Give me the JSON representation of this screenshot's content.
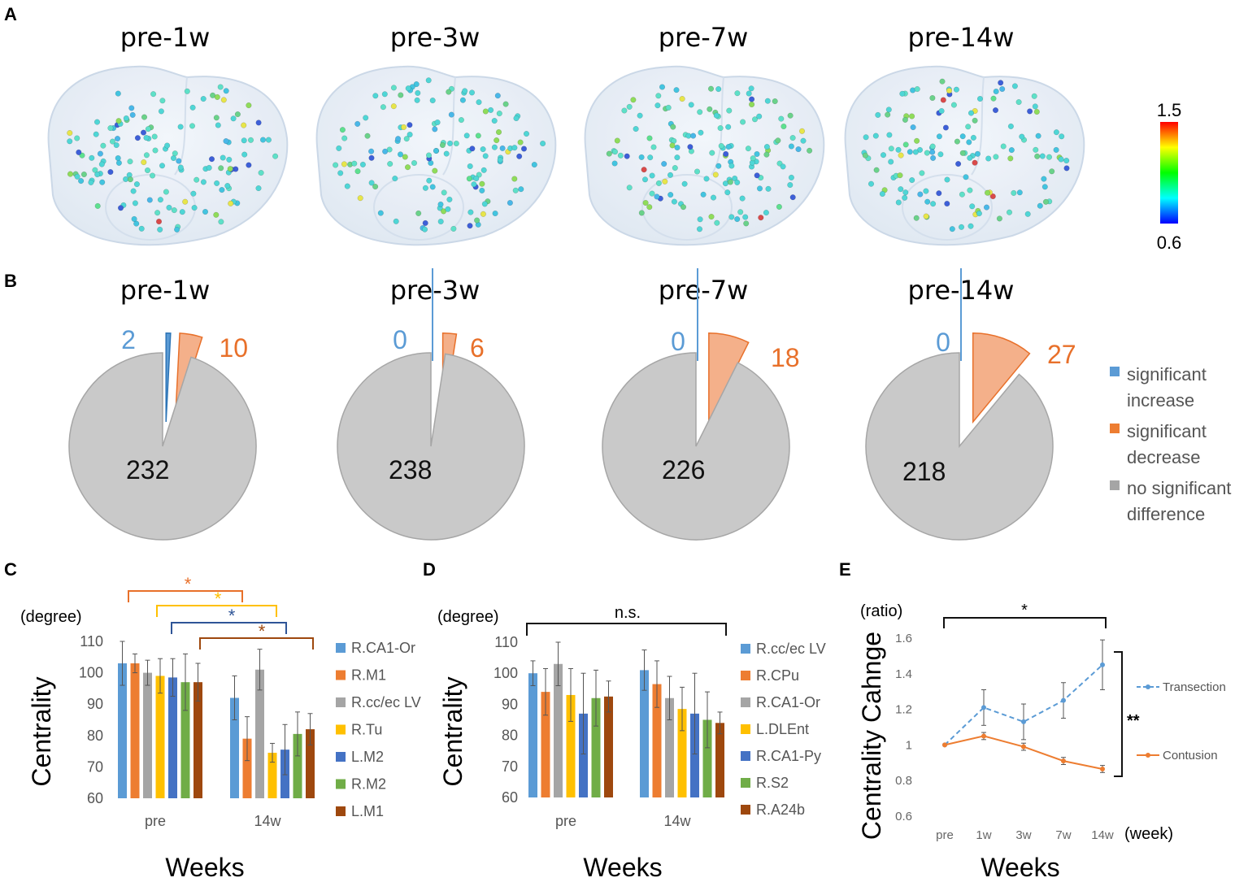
{
  "panels": {
    "A": {
      "label": "A",
      "titles": [
        "pre-1w",
        "pre-3w",
        "pre-7w",
        "pre-14w"
      ],
      "colorbar": {
        "max": "1.5",
        "min": "0.6"
      }
    },
    "B": {
      "label": "B"
    },
    "C": {
      "label": "C"
    },
    "D": {
      "label": "D"
    },
    "E": {
      "label": "E"
    }
  },
  "chart_data": [
    {
      "id": "B",
      "type": "pie",
      "charts": [
        {
          "title": "pre-1w",
          "values": [
            2,
            10,
            232
          ]
        },
        {
          "title": "pre-3w",
          "values": [
            0,
            6,
            238
          ]
        },
        {
          "title": "pre-7w",
          "values": [
            0,
            18,
            226
          ]
        },
        {
          "title": "pre-14w",
          "values": [
            0,
            27,
            218
          ]
        }
      ],
      "legend": [
        "significant increase",
        "significant decrease",
        "no significant difference"
      ],
      "colors": [
        "#5b9bd5",
        "#f4b08a",
        "#c9c9c9"
      ],
      "label_colors": [
        "#5b9bd5",
        "#e8702a",
        "#111111"
      ]
    },
    {
      "id": "C",
      "type": "bar",
      "unit": "(degree)",
      "ylabel": "Centrality",
      "xlabel": "Weeks",
      "ylim": [
        60,
        110
      ],
      "yticks": [
        60,
        70,
        80,
        90,
        100,
        110
      ],
      "categories": [
        "pre",
        "14w"
      ],
      "series": [
        {
          "name": "R.CA1-Or",
          "color": "#5b9bd5",
          "values": [
            103,
            92
          ],
          "err": [
            7,
            7
          ]
        },
        {
          "name": "R.M1",
          "color": "#ed7d31",
          "values": [
            103,
            79
          ],
          "err": [
            3,
            7
          ]
        },
        {
          "name": "R.cc/ec LV",
          "color": "#a5a5a5",
          "values": [
            100,
            101
          ],
          "err": [
            4,
            6.5
          ]
        },
        {
          "name": "R.Tu",
          "color": "#ffc000",
          "values": [
            99,
            74.5
          ],
          "err": [
            5.5,
            3
          ]
        },
        {
          "name": "L.M2",
          "color": "#4472c4",
          "values": [
            98.5,
            75.5
          ],
          "err": [
            6,
            8
          ]
        },
        {
          "name": "R.M2",
          "color": "#70ad47",
          "values": [
            97,
            80.5
          ],
          "err": [
            9,
            7
          ]
        },
        {
          "name": "L.M1",
          "color": "#9e480e",
          "values": [
            97,
            82
          ],
          "err": [
            6,
            5
          ]
        }
      ],
      "significance": [
        {
          "from": "R.CA1-Or",
          "to": "R.CA1-Or",
          "label": "*",
          "color": "#e8702a"
        },
        {
          "from": "R.Tu",
          "to": "R.Tu",
          "label": "*",
          "color": "#ffc000"
        },
        {
          "from": "L.M2",
          "to": "L.M2",
          "label": "*",
          "color": "#2f5597"
        },
        {
          "from": "L.M1",
          "to": "L.M1",
          "label": "*",
          "color": "#9e480e"
        }
      ]
    },
    {
      "id": "D",
      "type": "bar",
      "unit": "(degree)",
      "ylabel": "Centrality",
      "xlabel": "Weeks",
      "ylim": [
        60,
        110
      ],
      "yticks": [
        60,
        70,
        80,
        90,
        100,
        110
      ],
      "categories": [
        "pre",
        "14w"
      ],
      "series": [
        {
          "name": "R.cc/ec LV",
          "color": "#5b9bd5",
          "values": [
            100,
            101
          ],
          "err": [
            4,
            6.5
          ]
        },
        {
          "name": "R.CPu",
          "color": "#ed7d31",
          "values": [
            94,
            96.5
          ],
          "err": [
            7.5,
            7.5
          ]
        },
        {
          "name": "R.CA1-Or",
          "color": "#a5a5a5",
          "values": [
            103,
            92
          ],
          "err": [
            7,
            7
          ]
        },
        {
          "name": "L.DLEnt",
          "color": "#ffc000",
          "values": [
            93,
            88.5
          ],
          "err": [
            8.5,
            7
          ]
        },
        {
          "name": "R.CA1-Py",
          "color": "#4472c4",
          "values": [
            87,
            87
          ],
          "err": [
            13,
            13
          ]
        },
        {
          "name": "R.S2",
          "color": "#70ad47",
          "values": [
            92,
            85
          ],
          "err": [
            9,
            9
          ]
        },
        {
          "name": "R.A24b",
          "color": "#9e480e",
          "values": [
            92.5,
            84
          ],
          "err": [
            5,
            3.5
          ]
        }
      ],
      "significance": [
        {
          "label": "n.s."
        }
      ]
    },
    {
      "id": "E",
      "type": "line",
      "unit": "(ratio)",
      "ylabel": "Centrality Cahnge",
      "xlabel": "Weeks",
      "xunit": "(week)",
      "x": [
        "pre",
        "1w",
        "3w",
        "7w",
        "14w"
      ],
      "ylim": [
        0.6,
        1.6
      ],
      "yticks": [
        "0.6",
        "0.8",
        "1",
        "1.2",
        "1.4",
        "1.6"
      ],
      "series": [
        {
          "name": "Transection",
          "color": "#5b9bd5",
          "style": "dashed",
          "values": [
            1.0,
            1.21,
            1.13,
            1.25,
            1.45
          ],
          "err": [
            0,
            0.1,
            0.1,
            0.1,
            0.14
          ]
        },
        {
          "name": "Contusion",
          "color": "#ed7d31",
          "style": "solid",
          "values": [
            1.0,
            1.05,
            0.99,
            0.91,
            0.865
          ],
          "err": [
            0,
            0.02,
            0.02,
            0.02,
            0.02
          ]
        }
      ],
      "significance": [
        {
          "label": "*"
        },
        {
          "label": "**"
        }
      ]
    }
  ]
}
